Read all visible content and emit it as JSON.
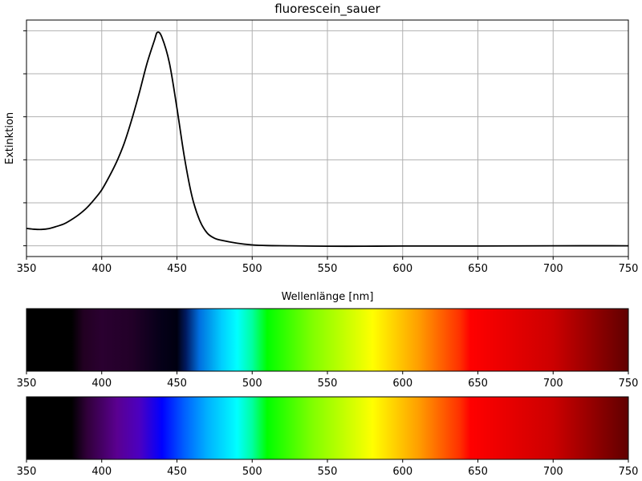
{
  "chart_data": [
    {
      "type": "line",
      "title": "fluorescein_sauer",
      "xlabel": "Wellenlänge [nm]",
      "ylabel": "Extinktion",
      "xlim": [
        350,
        750
      ],
      "ylim": [
        -0.05,
        1.05
      ],
      "x_ticks": [
        350,
        400,
        450,
        500,
        550,
        600,
        650,
        700,
        750
      ],
      "y_ticks": [
        0,
        0.2,
        0.4,
        0.6,
        0.8,
        1.0
      ],
      "y_tick_labels_shown": false,
      "grid": true,
      "series": [
        {
          "color": "#000000",
          "x": [
            350,
            355,
            360,
            365,
            370,
            375,
            380,
            385,
            390,
            395,
            400,
            405,
            410,
            415,
            420,
            425,
            430,
            435,
            437,
            440,
            445,
            450,
            455,
            460,
            465,
            470,
            475,
            480,
            490,
            500,
            510,
            525,
            550,
            575,
            600,
            650,
            700,
            750
          ],
          "y": [
            0.081,
            0.077,
            0.076,
            0.08,
            0.09,
            0.102,
            0.122,
            0.146,
            0.176,
            0.215,
            0.26,
            0.322,
            0.392,
            0.478,
            0.588,
            0.712,
            0.846,
            0.955,
            0.993,
            0.97,
            0.85,
            0.64,
            0.41,
            0.23,
            0.12,
            0.06,
            0.035,
            0.025,
            0.012,
            0.004,
            0.001,
            0.0,
            -0.002,
            -0.002,
            -0.001,
            -0.001,
            0.0,
            0.0
          ]
        }
      ]
    },
    {
      "type": "spectrum",
      "name": "measured spectrum band",
      "xlim": [
        350,
        750
      ],
      "x_ticks": [
        350,
        400,
        450,
        500,
        550,
        600,
        650,
        700,
        750
      ]
    },
    {
      "type": "spectrum",
      "name": "reference spectrum band",
      "xlim": [
        350,
        750
      ],
      "x_ticks": [
        350,
        400,
        450,
        500,
        550,
        600,
        650,
        700,
        750
      ]
    }
  ],
  "spectrum_colors": {
    "measured": [
      {
        "nm": 350,
        "color": "#000000"
      },
      {
        "nm": 380,
        "color": "#000000"
      },
      {
        "nm": 388,
        "color": "#220022"
      },
      {
        "nm": 400,
        "color": "#2a0030"
      },
      {
        "nm": 420,
        "color": "#220028"
      },
      {
        "nm": 440,
        "color": "#050018"
      },
      {
        "nm": 450,
        "color": "#000010"
      },
      {
        "nm": 456,
        "color": "#001a60"
      },
      {
        "nm": 465,
        "color": "#0070e0"
      },
      {
        "nm": 480,
        "color": "#00d0ff"
      },
      {
        "nm": 490,
        "color": "#00ffff"
      },
      {
        "nm": 500,
        "color": "#00ffa0"
      },
      {
        "nm": 510,
        "color": "#00ff00"
      },
      {
        "nm": 540,
        "color": "#80ff00"
      },
      {
        "nm": 580,
        "color": "#ffff00"
      },
      {
        "nm": 610,
        "color": "#ffa000"
      },
      {
        "nm": 638,
        "color": "#ff3000"
      },
      {
        "nm": 645,
        "color": "#ff0000"
      },
      {
        "nm": 700,
        "color": "#cc0000"
      },
      {
        "nm": 750,
        "color": "#600000"
      }
    ],
    "reference": [
      {
        "nm": 350,
        "color": "#000000"
      },
      {
        "nm": 380,
        "color": "#000000"
      },
      {
        "nm": 390,
        "color": "#300038"
      },
      {
        "nm": 410,
        "color": "#5a0090"
      },
      {
        "nm": 425,
        "color": "#4c00c0"
      },
      {
        "nm": 440,
        "color": "#0000ff"
      },
      {
        "nm": 455,
        "color": "#0060ff"
      },
      {
        "nm": 470,
        "color": "#00b0ff"
      },
      {
        "nm": 490,
        "color": "#00ffff"
      },
      {
        "nm": 500,
        "color": "#00ffa0"
      },
      {
        "nm": 510,
        "color": "#00ff00"
      },
      {
        "nm": 540,
        "color": "#80ff00"
      },
      {
        "nm": 580,
        "color": "#ffff00"
      },
      {
        "nm": 610,
        "color": "#ffa000"
      },
      {
        "nm": 638,
        "color": "#ff3000"
      },
      {
        "nm": 645,
        "color": "#ff0000"
      },
      {
        "nm": 700,
        "color": "#cc0000"
      },
      {
        "nm": 750,
        "color": "#600000"
      }
    ]
  },
  "colors": {
    "grid": "#b0b0b0",
    "line": "#000000",
    "axes": "#000000"
  }
}
